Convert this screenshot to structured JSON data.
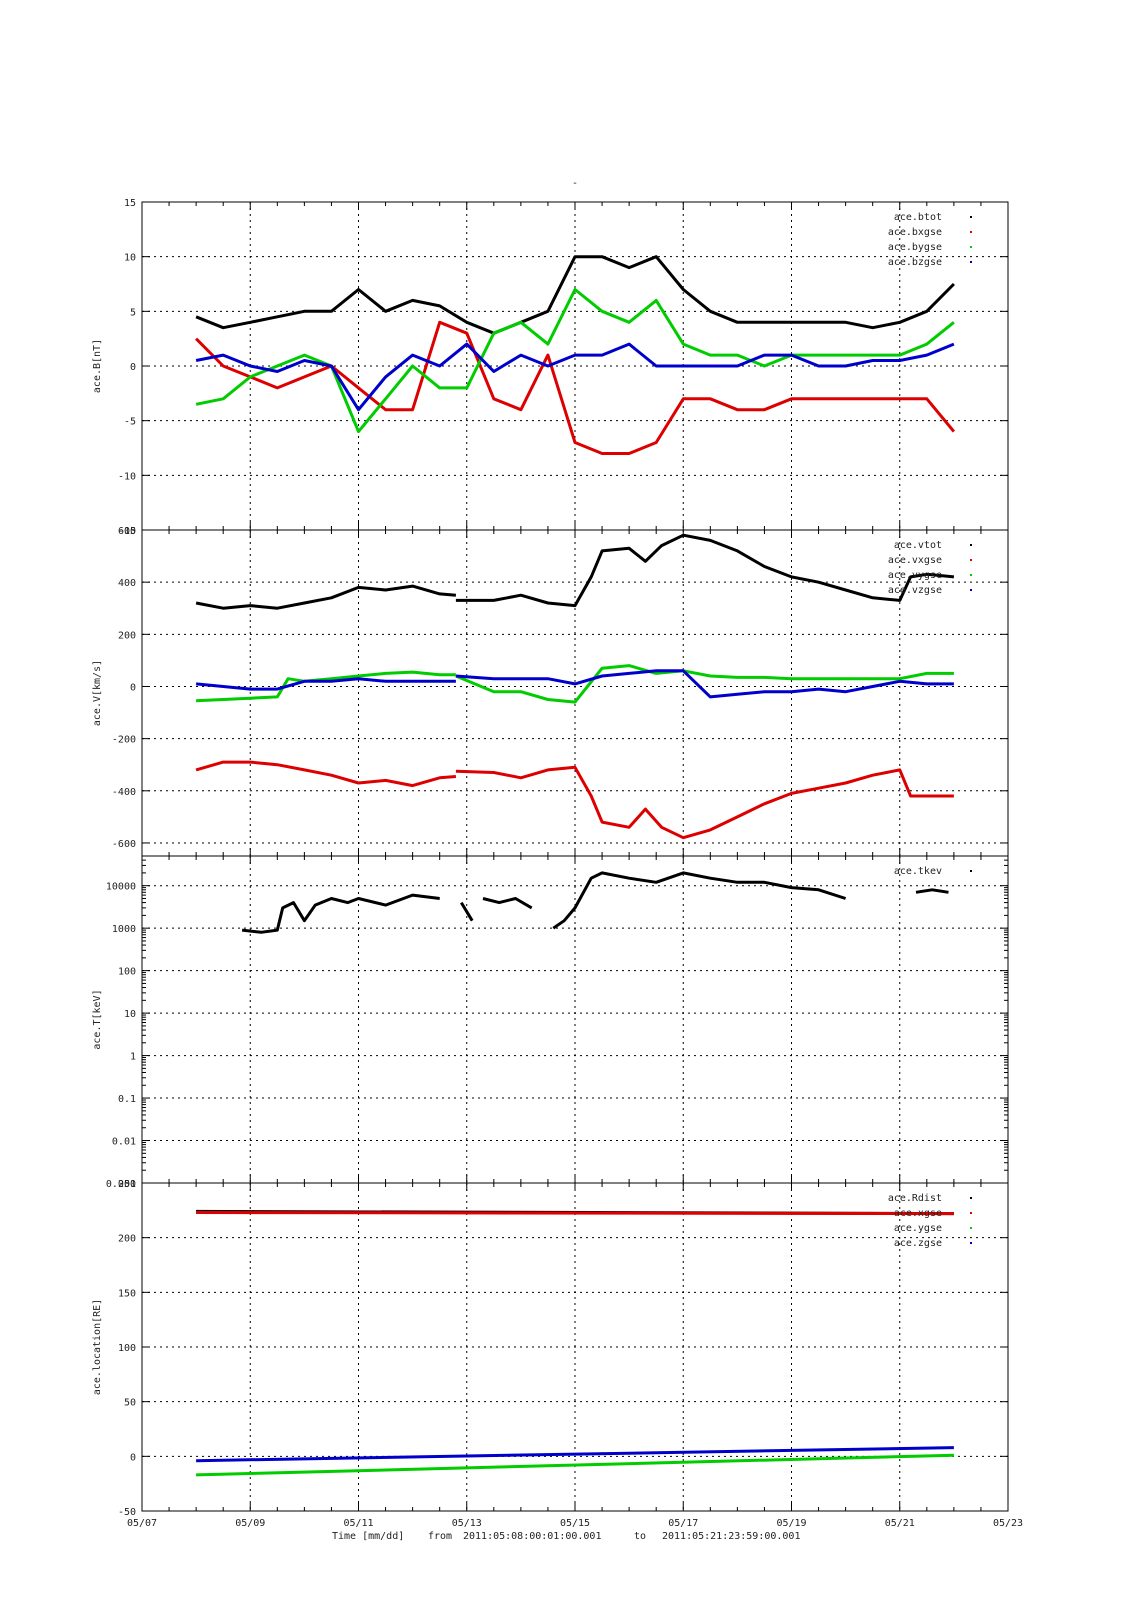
{
  "page": {
    "title_mark": "-"
  },
  "footer": {
    "xaxis_label": "Time [mm/dd]",
    "from_label": "from",
    "start": "2011:05:08:00:01:00.001",
    "to_label": "to",
    "end": "2011:05:21:23:59:00.001"
  },
  "chart_data": [
    {
      "id": "mag",
      "type": "scatter",
      "ylabel": "ace.B[nT]",
      "scale": "linear",
      "ylim": [
        -15,
        15
      ],
      "yticks": [
        -15,
        -10,
        -5,
        0,
        5,
        10,
        15
      ],
      "xlim": [
        0,
        16
      ],
      "grid": true,
      "legend_position": "top-right",
      "series": [
        {
          "name": "ace.btot",
          "color": "#000000",
          "x": [
            1,
            1.5,
            2,
            2.5,
            3,
            3.5,
            4,
            4.5,
            5,
            5.5,
            6,
            6.5,
            7,
            7.5,
            8,
            8.5,
            9,
            9.5,
            10,
            10.5,
            11,
            11.5,
            12,
            12.5,
            13,
            13.5,
            14,
            14.5,
            15
          ],
          "y": [
            4.5,
            3.5,
            4,
            4.5,
            5,
            5,
            7,
            5,
            6,
            5.5,
            4,
            3,
            4,
            5,
            10,
            10,
            9,
            10,
            7,
            5,
            4,
            4,
            4,
            4,
            4,
            3.5,
            4,
            5,
            7.5
          ]
        },
        {
          "name": "ace.bxgse",
          "color": "#dd0000",
          "x": [
            1,
            1.5,
            2,
            2.5,
            3,
            3.5,
            4,
            4.5,
            5,
            5.5,
            6,
            6.5,
            7,
            7.5,
            8,
            8.5,
            9,
            9.5,
            10,
            10.5,
            11,
            11.5,
            12,
            12.5,
            13,
            13.5,
            14,
            14.5,
            15
          ],
          "y": [
            2.5,
            0,
            -1,
            -2,
            -1,
            0,
            -2,
            -4,
            -4,
            4,
            3,
            -3,
            -4,
            1,
            -7,
            -8,
            -8,
            -7,
            -3,
            -3,
            -4,
            -4,
            -3,
            -3,
            -3,
            -3,
            -3,
            -3,
            -6
          ]
        },
        {
          "name": "ace.bygse",
          "color": "#00cc00",
          "x": [
            1,
            1.5,
            2,
            2.5,
            3,
            3.5,
            4,
            4.5,
            5,
            5.5,
            6,
            6.5,
            7,
            7.5,
            8,
            8.5,
            9,
            9.5,
            10,
            10.5,
            11,
            11.5,
            12,
            12.5,
            13,
            13.5,
            14,
            14.5,
            15
          ],
          "y": [
            -3.5,
            -3,
            -1,
            0,
            1,
            0,
            -6,
            -3,
            0,
            -2,
            -2,
            3,
            4,
            2,
            7,
            5,
            4,
            6,
            2,
            1,
            1,
            0,
            1,
            1,
            1,
            1,
            1,
            2,
            4
          ]
        },
        {
          "name": "ace.bzgse",
          "color": "#0000cc",
          "x": [
            1,
            1.5,
            2,
            2.5,
            3,
            3.5,
            4,
            4.5,
            5,
            5.5,
            6,
            6.5,
            7,
            7.5,
            8,
            8.5,
            9,
            9.5,
            10,
            10.5,
            11,
            11.5,
            12,
            12.5,
            13,
            13.5,
            14,
            14.5,
            15
          ],
          "y": [
            0.5,
            1,
            0,
            -0.5,
            0.5,
            0,
            -4,
            -1,
            1,
            0,
            2,
            -0.5,
            1,
            0,
            1,
            1,
            2,
            0,
            0,
            0,
            0,
            1,
            1,
            0,
            0,
            0.5,
            0.5,
            1,
            2
          ]
        }
      ]
    },
    {
      "id": "vel",
      "type": "scatter",
      "ylabel": "ace.V[km/s]",
      "scale": "linear",
      "ylim": [
        -650,
        600
      ],
      "yticks": [
        -600,
        -400,
        -200,
        0,
        200,
        400,
        600
      ],
      "xlim": [
        0,
        16
      ],
      "grid": true,
      "legend_position": "top-right",
      "series": [
        {
          "name": "ace.vtot",
          "color": "#000000",
          "x": [
            1,
            1.5,
            2,
            2.5,
            3,
            3.5,
            4,
            4.5,
            5,
            5.5,
            5.8,
            null,
            5.8,
            6.5,
            7,
            7.5,
            8,
            8.3,
            8.5,
            9,
            9.3,
            9.6,
            10,
            10.5,
            11,
            11.5,
            12,
            12.5,
            13,
            13.5,
            14,
            14.2,
            14.5,
            15
          ],
          "y": [
            320,
            300,
            310,
            300,
            320,
            340,
            380,
            370,
            385,
            355,
            350,
            null,
            330,
            330,
            350,
            320,
            310,
            420,
            520,
            530,
            480,
            540,
            580,
            560,
            520,
            460,
            420,
            400,
            370,
            340,
            330,
            420,
            430,
            420
          ]
        },
        {
          "name": "ace.vxgse",
          "color": "#dd0000",
          "x": [
            1,
            1.5,
            2,
            2.5,
            3,
            3.5,
            4,
            4.5,
            5,
            5.5,
            5.8,
            null,
            5.8,
            6.5,
            7,
            7.5,
            8,
            8.3,
            8.5,
            9,
            9.3,
            9.6,
            10,
            10.5,
            11,
            11.5,
            12,
            12.5,
            13,
            13.5,
            14,
            14.2,
            14.5,
            15
          ],
          "y": [
            -320,
            -290,
            -290,
            -300,
            -320,
            -340,
            -370,
            -360,
            -380,
            -350,
            -345,
            null,
            -325,
            -330,
            -350,
            -320,
            -310,
            -420,
            -520,
            -540,
            -470,
            -540,
            -580,
            -550,
            -500,
            -450,
            -410,
            -390,
            -370,
            -340,
            -320,
            -420,
            -420,
            -420
          ]
        },
        {
          "name": "ace.vygse",
          "color": "#00cc00",
          "x": [
            1,
            1.5,
            2,
            2.5,
            2.7,
            3,
            3.5,
            4,
            4.5,
            5,
            5.5,
            5.8,
            null,
            5.8,
            6.5,
            7,
            7.5,
            8,
            8.5,
            9,
            9.5,
            10,
            10.5,
            11,
            11.5,
            12,
            12.5,
            13,
            13.5,
            14,
            14.5,
            15
          ],
          "y": [
            -55,
            -50,
            -45,
            -40,
            30,
            20,
            30,
            40,
            50,
            55,
            45,
            45,
            null,
            40,
            -20,
            -20,
            -50,
            -60,
            70,
            80,
            50,
            60,
            40,
            35,
            35,
            30,
            30,
            30,
            30,
            30,
            50,
            50
          ]
        },
        {
          "name": "ace.vzgse",
          "color": "#0000cc",
          "x": [
            1,
            1.5,
            2,
            2.5,
            3,
            3.5,
            4,
            4.5,
            5,
            5.5,
            5.8,
            null,
            5.8,
            6.5,
            7,
            7.5,
            8,
            8.5,
            9,
            9.5,
            10,
            10.5,
            11,
            11.5,
            12,
            12.5,
            13,
            13.5,
            14,
            14.5,
            15
          ],
          "y": [
            10,
            0,
            -10,
            -10,
            20,
            20,
            30,
            20,
            20,
            20,
            20,
            null,
            40,
            30,
            30,
            30,
            10,
            40,
            50,
            60,
            60,
            -40,
            -30,
            -20,
            -20,
            -10,
            -20,
            0,
            20,
            10,
            10
          ]
        }
      ]
    },
    {
      "id": "temp",
      "type": "scatter",
      "ylabel": "ace.T[keV]",
      "scale": "log",
      "ylim": [
        0.001,
        50000
      ],
      "yticks": [
        0.001,
        0.01,
        0.1,
        1,
        10,
        100,
        1000,
        10000
      ],
      "ytick_labels": [
        "0.001",
        "0.01",
        "0.1",
        "1",
        "10",
        "100",
        "1000",
        "10000"
      ],
      "xlim": [
        0,
        16
      ],
      "grid": true,
      "legend_position": "top-right",
      "series": [
        {
          "name": "ace.tkev",
          "color": "#000000",
          "x": [
            1.85,
            2.2,
            2.5,
            2.6,
            2.8,
            3,
            3.2,
            3.5,
            3.8,
            4,
            4.5,
            5,
            5.5,
            null,
            5.9,
            6.1,
            null,
            6.3,
            6.6,
            6.9,
            7.2,
            null,
            7.6,
            7.8,
            8,
            8.3,
            8.5,
            9,
            9.5,
            10,
            10.5,
            11,
            11.5,
            12,
            12.5,
            13,
            null,
            14.3,
            14.6,
            14.9
          ],
          "y": [
            900,
            800,
            900,
            3000,
            4000,
            1500,
            3500,
            5000,
            4000,
            5000,
            3500,
            6000,
            5000,
            null,
            4000,
            1500,
            null,
            5000,
            4000,
            5000,
            3000,
            null,
            1000,
            1500,
            3000,
            15000,
            20000,
            15000,
            12000,
            20000,
            15000,
            12000,
            12000,
            9000,
            8000,
            5000,
            null,
            7000,
            8000,
            7000
          ]
        }
      ]
    },
    {
      "id": "loc",
      "type": "scatter",
      "ylabel": "ace.location[RE]",
      "scale": "linear",
      "ylim": [
        -50,
        250
      ],
      "yticks": [
        -50,
        0,
        50,
        100,
        150,
        200,
        250
      ],
      "xlim": [
        0,
        16
      ],
      "xticks": [
        0,
        2,
        4,
        6,
        8,
        10,
        12,
        14,
        16
      ],
      "xtick_labels": [
        "05/07",
        "05/09",
        "05/11",
        "05/13",
        "05/15",
        "05/17",
        "05/19",
        "05/21",
        "05/23"
      ],
      "grid": true,
      "legend_position": "top-right",
      "series": [
        {
          "name": "ace.Rdist",
          "color": "#000000",
          "x": [
            1,
            15
          ],
          "y": [
            224,
            222
          ]
        },
        {
          "name": "ace.xgse",
          "color": "#dd0000",
          "x": [
            1,
            15
          ],
          "y": [
            223,
            222
          ]
        },
        {
          "name": "ace.ygse",
          "color": "#00cc00",
          "x": [
            1,
            15
          ],
          "y": [
            -17,
            1
          ]
        },
        {
          "name": "ace.zgse",
          "color": "#0000cc",
          "x": [
            1,
            15
          ],
          "y": [
            -4,
            8
          ]
        }
      ]
    }
  ]
}
